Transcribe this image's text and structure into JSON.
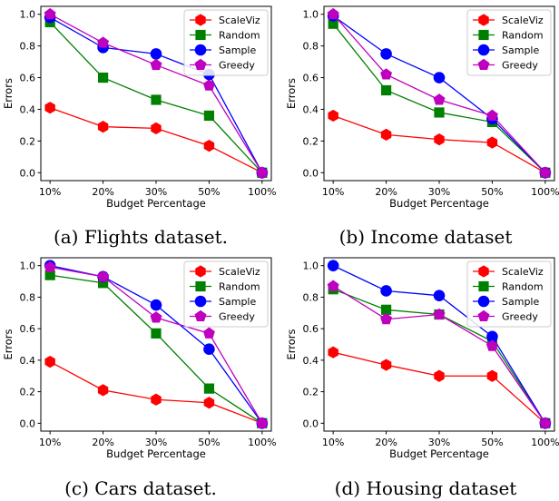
{
  "chart_data": [
    {
      "type": "line",
      "caption": "(a) Flights dataset.",
      "xlabel": "Budget Percentage",
      "ylabel": "Errors",
      "categories": [
        "10%",
        "20%",
        "30%",
        "50%",
        "100%"
      ],
      "ylim": [
        -0.05,
        1.05
      ],
      "yticks": [
        "0.0",
        "0.2",
        "0.4",
        "0.6",
        "0.8",
        "1.0"
      ],
      "legend_position": "top-right",
      "grid": false,
      "series": [
        {
          "name": "ScaleViz",
          "color": "#ff0000",
          "marker": "hexagon",
          "values": [
            0.41,
            0.29,
            0.28,
            0.17,
            0.0
          ]
        },
        {
          "name": "Random",
          "color": "#008000",
          "marker": "square",
          "values": [
            0.95,
            0.6,
            0.46,
            0.36,
            0.0
          ]
        },
        {
          "name": "Sample",
          "color": "#0000ff",
          "marker": "circle",
          "values": [
            0.98,
            0.79,
            0.75,
            0.62,
            0.0
          ]
        },
        {
          "name": "Greedy",
          "color": "#bf00bf",
          "marker": "pentagon",
          "values": [
            1.0,
            0.82,
            0.68,
            0.55,
            0.0
          ]
        }
      ]
    },
    {
      "type": "line",
      "caption": "(b) Income dataset",
      "xlabel": "Budget Percentage",
      "ylabel": "Errors",
      "categories": [
        "10%",
        "20%",
        "30%",
        "50%",
        "100%"
      ],
      "ylim": [
        -0.05,
        1.05
      ],
      "yticks": [
        "0.0",
        "0.2",
        "0.4",
        "0.6",
        "0.8",
        "1.0"
      ],
      "legend_position": "top-right",
      "grid": false,
      "series": [
        {
          "name": "ScaleViz",
          "color": "#ff0000",
          "marker": "hexagon",
          "values": [
            0.36,
            0.24,
            0.21,
            0.19,
            0.0
          ]
        },
        {
          "name": "Random",
          "color": "#008000",
          "marker": "square",
          "values": [
            0.94,
            0.52,
            0.38,
            0.32,
            0.0
          ]
        },
        {
          "name": "Sample",
          "color": "#0000ff",
          "marker": "circle",
          "values": [
            0.99,
            0.75,
            0.6,
            0.34,
            0.0
          ]
        },
        {
          "name": "Greedy",
          "color": "#bf00bf",
          "marker": "pentagon",
          "values": [
            1.0,
            0.62,
            0.46,
            0.36,
            0.0
          ]
        }
      ]
    },
    {
      "type": "line",
      "caption": "(c) Cars dataset.",
      "xlabel": "Budget Percentage",
      "ylabel": "Errors",
      "categories": [
        "10%",
        "20%",
        "30%",
        "50%",
        "100%"
      ],
      "ylim": [
        -0.05,
        1.05
      ],
      "yticks": [
        "0.0",
        "0.2",
        "0.4",
        "0.6",
        "0.8",
        "1.0"
      ],
      "legend_position": "top-right",
      "grid": false,
      "series": [
        {
          "name": "ScaleViz",
          "color": "#ff0000",
          "marker": "hexagon",
          "values": [
            0.39,
            0.21,
            0.15,
            0.13,
            0.0
          ]
        },
        {
          "name": "Random",
          "color": "#008000",
          "marker": "square",
          "values": [
            0.94,
            0.89,
            0.57,
            0.22,
            0.0
          ]
        },
        {
          "name": "Sample",
          "color": "#0000ff",
          "marker": "circle",
          "values": [
            1.0,
            0.93,
            0.75,
            0.47,
            0.0
          ]
        },
        {
          "name": "Greedy",
          "color": "#bf00bf",
          "marker": "pentagon",
          "values": [
            0.99,
            0.93,
            0.67,
            0.57,
            0.0
          ]
        }
      ]
    },
    {
      "type": "line",
      "caption": "(d) Housing dataset",
      "xlabel": "Budget Percentage",
      "ylabel": "Errors",
      "categories": [
        "10%",
        "20%",
        "30%",
        "50%",
        "100%"
      ],
      "ylim": [
        -0.05,
        1.05
      ],
      "yticks": [
        "0.0",
        "0.2",
        "0.4",
        "0.6",
        "0.8",
        "1.0"
      ],
      "legend_position": "top-right",
      "grid": false,
      "series": [
        {
          "name": "ScaleViz",
          "color": "#ff0000",
          "marker": "hexagon",
          "values": [
            0.45,
            0.37,
            0.3,
            0.3,
            0.0
          ]
        },
        {
          "name": "Random",
          "color": "#008000",
          "marker": "square",
          "values": [
            0.85,
            0.72,
            0.69,
            0.52,
            0.0
          ]
        },
        {
          "name": "Sample",
          "color": "#0000ff",
          "marker": "circle",
          "values": [
            1.0,
            0.84,
            0.81,
            0.55,
            0.0
          ]
        },
        {
          "name": "Greedy",
          "color": "#bf00bf",
          "marker": "pentagon",
          "values": [
            0.87,
            0.66,
            0.69,
            0.49,
            0.0
          ]
        }
      ]
    }
  ]
}
